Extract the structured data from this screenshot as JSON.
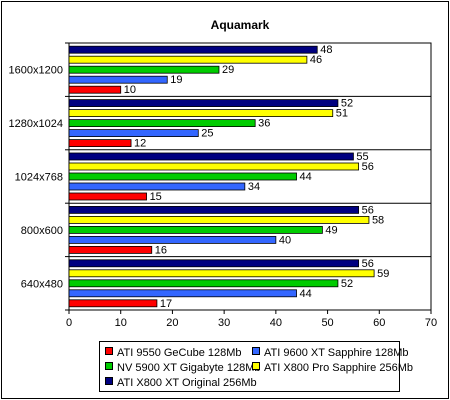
{
  "chart_data": {
    "type": "bar",
    "orientation": "horizontal",
    "title": "Aquamark",
    "categories": [
      "1600x1200",
      "1280x1024",
      "1024x768",
      "800x600",
      "640x480"
    ],
    "series": [
      {
        "name": "ATI 9550 GeCube 128Mb",
        "color": "#ff0000",
        "values": [
          10,
          12,
          15,
          16,
          17
        ]
      },
      {
        "name": "ATI 9600 XT Sapphire 128Mb",
        "color": "#3366ff",
        "values": [
          19,
          25,
          34,
          40,
          44
        ]
      },
      {
        "name": "NV 5900 XT Gigabyte 128Mb",
        "color": "#00cc00",
        "values": [
          29,
          36,
          44,
          49,
          52
        ]
      },
      {
        "name": "ATI X800 Pro Sapphire 256Mb",
        "color": "#ffff00",
        "values": [
          46,
          51,
          56,
          58,
          59
        ]
      },
      {
        "name": "ATI X800 XT Original 256Mb",
        "color": "#000080",
        "values": [
          48,
          52,
          55,
          56,
          56
        ]
      }
    ],
    "xlim": [
      0,
      70
    ],
    "xticks": [
      0,
      10,
      20,
      30,
      40,
      50,
      60,
      70
    ],
    "xlabel": "",
    "ylabel": "",
    "grid": false,
    "legend_position": "bottom"
  }
}
